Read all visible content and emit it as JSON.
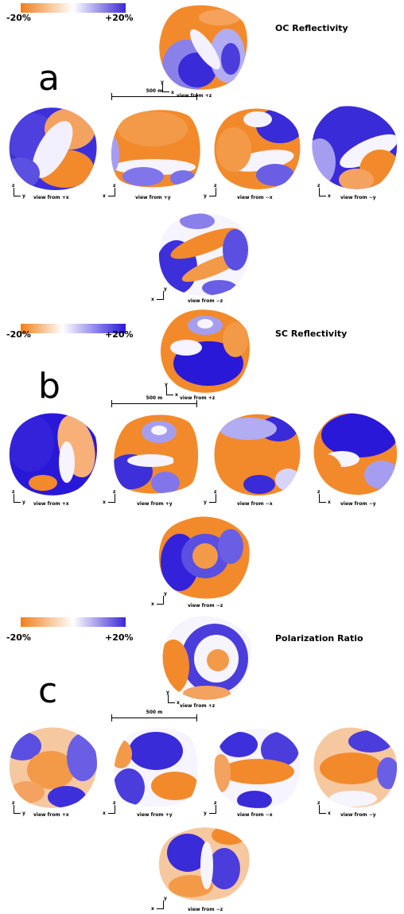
{
  "panels": [
    {
      "letter": "a",
      "title": "OC Reflectivity",
      "colorbar": {
        "min_label": "-20%",
        "max_label": "+20%",
        "low_color": "#f07f1a",
        "high_color": "#3b28d6"
      },
      "scale_label": "500 m",
      "views": {
        "top": {
          "h": "x",
          "v": "y",
          "label": "view from +z"
        },
        "px": {
          "h": "y",
          "v": "z",
          "label": "view from +x"
        },
        "py": {
          "h": "x",
          "v": "z",
          "label": "view from +y"
        },
        "mx": {
          "h": "y",
          "v": "z",
          "label": "view from −x"
        },
        "my": {
          "h": "x",
          "v": "z",
          "label": "view from −y"
        },
        "bottom": {
          "h": "x",
          "v": "y",
          "label": "view from −z"
        }
      }
    },
    {
      "letter": "b",
      "title": "SC Reflectivity",
      "colorbar": {
        "min_label": "-20%",
        "max_label": "+20%",
        "low_color": "#f07f1a",
        "high_color": "#2a18d8"
      },
      "scale_label": "500 m",
      "views": {
        "top": {
          "h": "x",
          "v": "y",
          "label": "view from +z"
        },
        "px": {
          "h": "y",
          "v": "z",
          "label": "view from +x"
        },
        "py": {
          "h": "x",
          "v": "z",
          "label": "view from +y"
        },
        "mx": {
          "h": "y",
          "v": "z",
          "label": "view from −x"
        },
        "my": {
          "h": "x",
          "v": "z",
          "label": "view from −y"
        },
        "bottom": {
          "h": "x",
          "v": "y",
          "label": "view from −z"
        }
      }
    },
    {
      "letter": "c",
      "title": "Polarization Ratio",
      "colorbar": {
        "min_label": "-20%",
        "max_label": "+20%",
        "low_color": "#f07f1a",
        "high_color": "#3b28d6"
      },
      "scale_label": "500 m",
      "views": {
        "top": {
          "h": "x",
          "v": "y",
          "label": "view from +z"
        },
        "px": {
          "h": "y",
          "v": "z",
          "label": "view from +x"
        },
        "py": {
          "h": "x",
          "v": "z",
          "label": "view from +y"
        },
        "mx": {
          "h": "y",
          "v": "z",
          "label": "view from −x"
        },
        "my": {
          "h": "x",
          "v": "z",
          "label": "view from −y"
        },
        "bottom": {
          "h": "x",
          "v": "y",
          "label": "view from −z"
        }
      }
    }
  ]
}
